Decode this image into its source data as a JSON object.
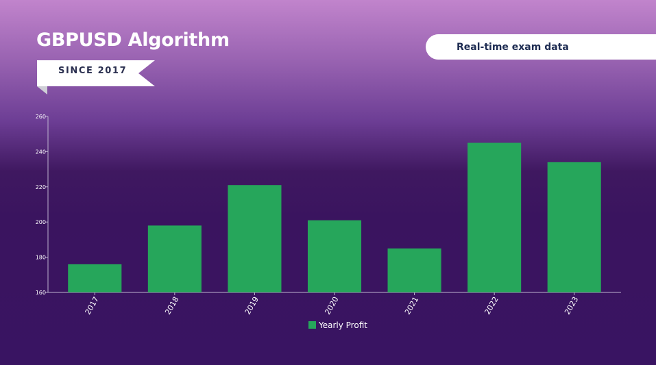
{
  "header": {
    "title": "GBPUSD Algorithm",
    "subtitle_ribbon": "SINCE 2017",
    "badge": "Real-time exam data"
  },
  "colors": {
    "bar": "#26a65b",
    "text": "#ffffff",
    "badge_text": "#1e2c52"
  },
  "chart_data": {
    "type": "bar",
    "categories": [
      "2017",
      "2018",
      "2019",
      "2020",
      "2021",
      "2022",
      "2023"
    ],
    "series": [
      {
        "name": "Yearly Profit",
        "values": [
          176,
          198,
          221,
          201,
          185,
          245,
          234
        ]
      }
    ],
    "ylim": [
      160,
      260
    ],
    "yticks": [
      160,
      180,
      200,
      220,
      240,
      260
    ],
    "grid": false,
    "legend": "bottom"
  }
}
